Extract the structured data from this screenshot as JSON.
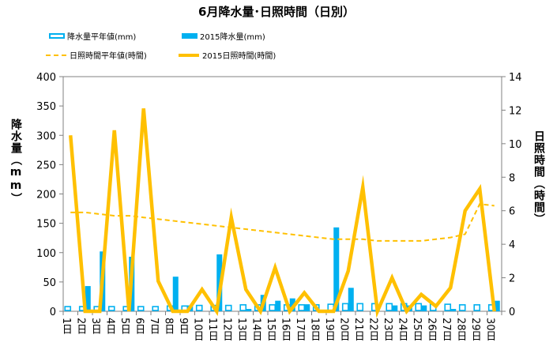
{
  "chart_data": {
    "type": "bar+line",
    "title": "6月降水量･日照時間（日別）",
    "ylabel_left": "降水量（mm）",
    "ylabel_right": "日照時間（時間）",
    "ylim_left": [
      0,
      400
    ],
    "ylim_right": [
      0,
      14
    ],
    "yticks_left": [
      "0",
      "50",
      "100",
      "150",
      "200",
      "250",
      "300",
      "350",
      "400"
    ],
    "yticks_right": [
      "0",
      "2",
      "4",
      "6",
      "8",
      "10",
      "12",
      "14"
    ],
    "categories": [
      "1日",
      "2日",
      "3日",
      "4日",
      "5日",
      "6日",
      "7日",
      "8日",
      "9日",
      "10日",
      "11日",
      "12日",
      "13日",
      "14日",
      "15日",
      "16日",
      "17日",
      "18日",
      "19日",
      "20日",
      "21日",
      "22日",
      "23日",
      "24日",
      "25日",
      "26日",
      "27日",
      "28日",
      "29日",
      "30日"
    ],
    "grid": false,
    "legend": "top",
    "series": [
      {
        "name": "降水量平年値(mm)",
        "type": "bar",
        "axis": "left",
        "style": "outline",
        "color": "#00b0f0",
        "values": [
          8,
          8,
          8,
          8,
          8,
          8,
          8,
          9,
          9,
          10,
          10,
          10,
          11,
          11,
          11,
          11,
          11,
          11,
          12,
          13,
          13,
          13,
          13,
          13,
          13,
          12,
          12,
          11,
          11,
          11
        ]
      },
      {
        "name": "2015降水量(mm)",
        "type": "bar",
        "axis": "left",
        "style": "filled",
        "color": "#00b0f0",
        "values": [
          0,
          43,
          102,
          0,
          93,
          0,
          0,
          59,
          10,
          0,
          97,
          0,
          4,
          28,
          18,
          22,
          12,
          0,
          143,
          40,
          0,
          0,
          10,
          10,
          10,
          0,
          4,
          0,
          0,
          18
        ]
      },
      {
        "name": "日照時間平年値(時間)",
        "type": "line",
        "axis": "right",
        "style": "dashed",
        "color": "#ffc000",
        "values": [
          5.9,
          5.9,
          5.8,
          5.7,
          5.7,
          5.6,
          5.5,
          5.4,
          5.3,
          5.2,
          5.1,
          5.0,
          4.9,
          4.8,
          4.7,
          4.6,
          4.5,
          4.4,
          4.3,
          4.3,
          4.3,
          4.2,
          4.2,
          4.2,
          4.2,
          4.3,
          4.4,
          4.6,
          6.4,
          6.3
        ]
      },
      {
        "name": "2015日照時間(時間)",
        "type": "line",
        "axis": "right",
        "style": "solid",
        "color": "#ffc000",
        "values": [
          10.5,
          0,
          0,
          10.8,
          0,
          12.1,
          1.8,
          0,
          0,
          1.3,
          0,
          5.6,
          1.3,
          0,
          2.6,
          0,
          1.1,
          0,
          0,
          2.4,
          7.4,
          0,
          2.0,
          0,
          1.0,
          0.3,
          1.4,
          6.0,
          7.3,
          0
        ]
      }
    ]
  }
}
